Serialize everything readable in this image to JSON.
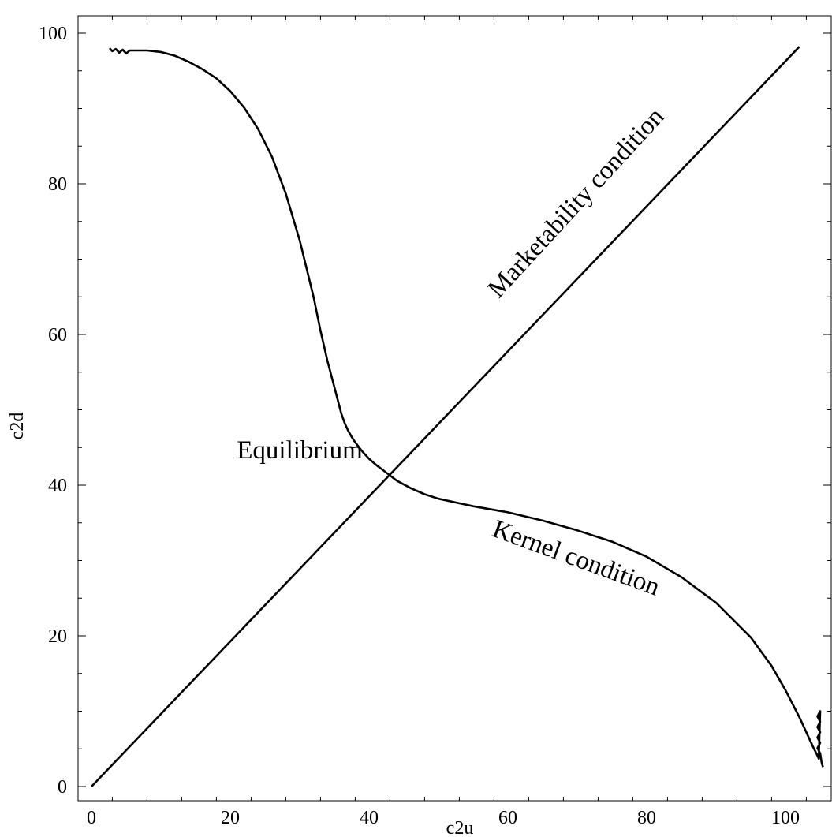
{
  "chart_data": {
    "type": "line",
    "title": "",
    "xlabel": "c2u",
    "ylabel": "c2d",
    "xlim": [
      -2,
      106
    ],
    "ylim": [
      -2,
      100
    ],
    "x_ticks": [
      0,
      20,
      40,
      60,
      80,
      100
    ],
    "y_ticks": [
      0,
      20,
      40,
      60,
      80,
      100
    ],
    "x_tick_labels": [
      "0",
      "20",
      "40",
      "60",
      "80",
      "100"
    ],
    "y_tick_labels": [
      "0",
      "20",
      "40",
      "60",
      "80",
      "100"
    ],
    "grid": false,
    "legend": "none",
    "series": [
      {
        "id": "marketability",
        "x": [
          0,
          102
        ],
        "y": [
          0,
          98.2
        ]
      },
      {
        "id": "kernel",
        "x": [
          2.6,
          3.0,
          3.5,
          4.0,
          4.5,
          5.0,
          5.5,
          6.0,
          7.0,
          8.0,
          9.0,
          10.0,
          12.0,
          14.0,
          16.0,
          18.0,
          20.0,
          22.0,
          24.0,
          26.0,
          28.0,
          30.0,
          32.0,
          33.0,
          34.0,
          35.0,
          36.0,
          36.5,
          37.0,
          37.5,
          38.0,
          39.0,
          40.0,
          41.0,
          42.0,
          43.0,
          44.0,
          46.0,
          48.0,
          50.0,
          55.0,
          60.0,
          65.0,
          70.0,
          75.0,
          80.0,
          85.0,
          90.0,
          95.0,
          98.0,
          100.0,
          102.0,
          103.0,
          104.0,
          104.5,
          104.8,
          105.0,
          104.6,
          105.0,
          104.6,
          105.0,
          104.6,
          105.0,
          104.6,
          105.0,
          105.2,
          105.4
        ],
        "y": [
          98.0,
          97.6,
          97.9,
          97.4,
          97.8,
          97.3,
          97.7,
          97.7,
          97.7,
          97.7,
          97.6,
          97.5,
          97.0,
          96.2,
          95.2,
          94.0,
          92.3,
          90.1,
          87.3,
          83.6,
          78.7,
          72.5,
          65.0,
          60.5,
          56.5,
          53.0,
          49.5,
          48.2,
          47.2,
          46.4,
          45.7,
          44.5,
          43.5,
          42.7,
          42.0,
          41.3,
          40.6,
          39.6,
          38.8,
          38.2,
          37.2,
          36.4,
          35.3,
          34.0,
          32.5,
          30.5,
          27.8,
          24.4,
          19.8,
          16.0,
          12.8,
          9.2,
          7.2,
          5.2,
          4.3,
          3.7,
          10.0,
          9.3,
          8.6,
          7.9,
          7.2,
          6.5,
          5.8,
          5.1,
          4.4,
          3.2,
          2.6
        ]
      }
    ],
    "annotations": [
      {
        "id": "marketability",
        "text": "Marketability condition"
      },
      {
        "id": "kernel",
        "text": "Kernel condition"
      },
      {
        "id": "equilibrium",
        "text": "Equilibrium"
      }
    ]
  }
}
